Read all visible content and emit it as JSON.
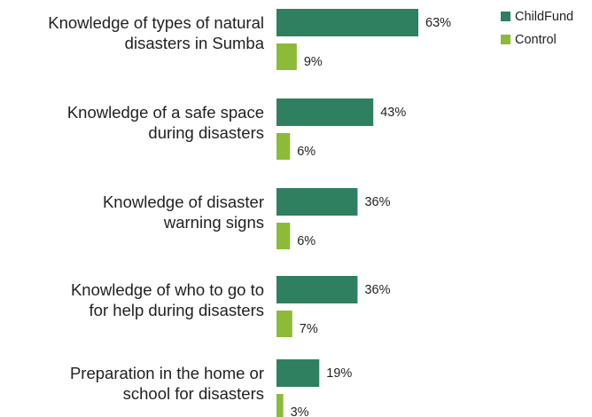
{
  "chart_data": {
    "type": "bar",
    "orientation": "horizontal",
    "categories": [
      "Knowledge of types of natural disasters in Sumba",
      "Knowledge of a safe space during disasters",
      "Knowledge of disaster warning signs",
      "Knowledge of who to go to for help during disasters",
      "Preparation in the home or school for disasters"
    ],
    "category_lines": [
      [
        "Knowledge of types of natural",
        "disasters in Sumba"
      ],
      [
        "Knowledge of a safe space",
        "during disasters"
      ],
      [
        "Knowledge of disaster",
        "warning signs"
      ],
      [
        "Knowledge of who to go to",
        "for help during disasters"
      ],
      [
        "Preparation in the home or",
        "school for disasters"
      ]
    ],
    "series": [
      {
        "name": "ChildFund",
        "values": [
          63,
          43,
          36,
          36,
          19
        ],
        "color": "#2e8060"
      },
      {
        "name": "Control",
        "values": [
          9,
          6,
          6,
          7,
          3
        ],
        "color": "#8cbb3a"
      }
    ],
    "value_suffix": "%",
    "legend_position": "top-right",
    "grid": false
  }
}
